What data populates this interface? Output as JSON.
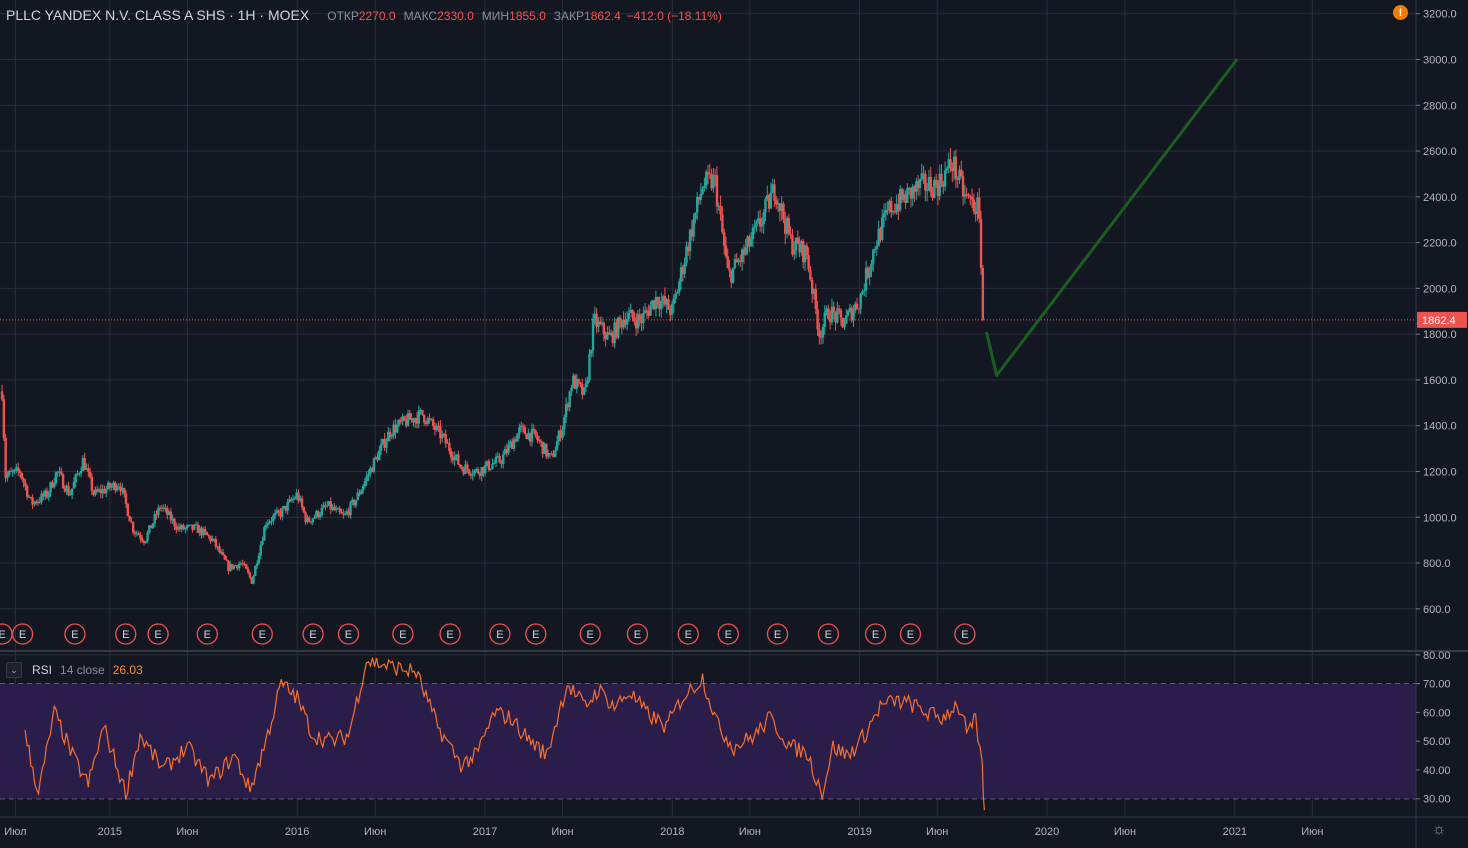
{
  "header": {
    "symbol": "PLLC YANDEX N.V. CLASS A SHS · 1Н · MOEX",
    "open_label": "ОТКР",
    "open_value": "2270.0",
    "high_label": "МАКС",
    "high_value": "2330.0",
    "low_label": "МИН",
    "low_value": "1855.0",
    "close_label": "ЗАКР",
    "close_value": "1862.4",
    "change": "−412.0 (−18.11%)"
  },
  "alert_icon": "!",
  "settings_icon": "☼",
  "rsi": {
    "collapse_icon": "⌄",
    "name": "RSI",
    "params": "14 close",
    "value": "26.03"
  },
  "colors": {
    "background": "#131722",
    "grid": "#2a2e39",
    "up": "#26a69a",
    "down": "#ef5350",
    "rsi_line": "#f7702a",
    "rsi_band": "#2b1d4a",
    "drawing": "#1b5e20",
    "price_tag": "#ef5350"
  },
  "chart_data": [
    {
      "type": "candlestick",
      "title": "PLLC YANDEX N.V. CLASS A SHS",
      "timeframe": "1Н",
      "exchange": "MOEX",
      "y_ticks": [
        600,
        800,
        1000,
        1200,
        1400,
        1600,
        1800,
        2000,
        2200,
        2400,
        2600,
        2800,
        3000,
        3200
      ],
      "y_tick_labels": [
        "600.0",
        "800.0",
        "1000.0",
        "1200.0",
        "1400.0",
        "1600.0",
        "1800.0",
        "2000.0",
        "2200.0",
        "2400.0",
        "2600.0",
        "2800.0",
        "3000.0",
        "3200.0"
      ],
      "ylim": [
        420,
        3260
      ],
      "x_axis": {
        "range": [
          "2014-06-01",
          "2021-12-20"
        ],
        "ticks": [
          {
            "date": "2014-07-01",
            "label": "Июл"
          },
          {
            "date": "2015-01-01",
            "label": "2015"
          },
          {
            "date": "2015-06-01",
            "label": "Июн"
          },
          {
            "date": "2016-01-01",
            "label": "2016"
          },
          {
            "date": "2016-06-01",
            "label": "Июн"
          },
          {
            "date": "2017-01-01",
            "label": "2017"
          },
          {
            "date": "2017-06-01",
            "label": "Июн"
          },
          {
            "date": "2018-01-01",
            "label": "2018"
          },
          {
            "date": "2018-06-01",
            "label": "Июн"
          },
          {
            "date": "2019-01-01",
            "label": "2019"
          },
          {
            "date": "2019-06-01",
            "label": "Июн"
          },
          {
            "date": "2020-01-01",
            "label": "2020"
          },
          {
            "date": "2020-06-01",
            "label": "Июн"
          },
          {
            "date": "2021-01-01",
            "label": "2021"
          },
          {
            "date": "2021-06-01",
            "label": "Июн"
          }
        ]
      },
      "grid": true,
      "last_price": 1862.4,
      "last_price_label": "1862.4",
      "price_path": [
        [
          "2014-06-05",
          1550
        ],
        [
          "2014-06-12",
          1180
        ],
        [
          "2014-07-10",
          1200
        ],
        [
          "2014-08-01",
          1060
        ],
        [
          "2014-09-01",
          1100
        ],
        [
          "2014-09-20",
          1200
        ],
        [
          "2014-10-15",
          1100
        ],
        [
          "2014-11-10",
          1250
        ],
        [
          "2014-12-01",
          1100
        ],
        [
          "2015-01-20",
          1150
        ],
        [
          "2015-02-15",
          950
        ],
        [
          "2015-03-10",
          900
        ],
        [
          "2015-04-10",
          1050
        ],
        [
          "2015-05-15",
          950
        ],
        [
          "2015-06-20",
          950
        ],
        [
          "2015-07-20",
          900
        ],
        [
          "2015-08-20",
          780
        ],
        [
          "2015-09-15",
          800
        ],
        [
          "2015-10-05",
          720
        ],
        [
          "2015-11-01",
          980
        ],
        [
          "2015-12-01",
          1020
        ],
        [
          "2016-01-01",
          1100
        ],
        [
          "2016-01-20",
          980
        ],
        [
          "2016-03-01",
          1050
        ],
        [
          "2016-04-01",
          1000
        ],
        [
          "2016-04-25",
          1080
        ],
        [
          "2016-06-01",
          1250
        ],
        [
          "2016-07-01",
          1380
        ],
        [
          "2016-08-01",
          1420
        ],
        [
          "2016-09-01",
          1450
        ],
        [
          "2016-10-10",
          1350
        ],
        [
          "2016-11-15",
          1220
        ],
        [
          "2016-12-15",
          1200
        ],
        [
          "2017-02-01",
          1250
        ],
        [
          "2017-03-10",
          1380
        ],
        [
          "2017-04-10",
          1350
        ],
        [
          "2017-05-10",
          1250
        ],
        [
          "2017-06-01",
          1400
        ],
        [
          "2017-06-20",
          1600
        ],
        [
          "2017-07-15",
          1530
        ],
        [
          "2017-08-01",
          1860
        ],
        [
          "2017-09-01",
          1780
        ],
        [
          "2017-10-01",
          1880
        ],
        [
          "2017-11-01",
          1860
        ],
        [
          "2017-12-01",
          1960
        ],
        [
          "2018-01-01",
          1900
        ],
        [
          "2018-02-01",
          2200
        ],
        [
          "2018-03-01",
          2450
        ],
        [
          "2018-03-25",
          2470
        ],
        [
          "2018-04-20",
          2050
        ],
        [
          "2018-05-20",
          2150
        ],
        [
          "2018-06-20",
          2280
        ],
        [
          "2018-07-20",
          2440
        ],
        [
          "2018-08-20",
          2200
        ],
        [
          "2018-09-20",
          2150
        ],
        [
          "2018-10-15",
          1800
        ],
        [
          "2018-11-01",
          1900
        ],
        [
          "2018-12-01",
          1850
        ],
        [
          "2019-01-01",
          1950
        ],
        [
          "2019-02-01",
          2200
        ],
        [
          "2019-03-01",
          2350
        ],
        [
          "2019-04-01",
          2400
        ],
        [
          "2019-05-01",
          2450
        ],
        [
          "2019-06-01",
          2450
        ],
        [
          "2019-07-01",
          2550
        ],
        [
          "2019-07-25",
          2400
        ],
        [
          "2019-08-20",
          2350
        ],
        [
          "2019-09-01",
          1862.4
        ]
      ],
      "earnings_marker_label": "E",
      "earnings_dates": [
        "2014-06-05",
        "2014-07-15",
        "2014-10-25",
        "2015-02-01",
        "2015-04-05",
        "2015-07-10",
        "2015-10-25",
        "2016-02-01",
        "2016-04-10",
        "2016-07-25",
        "2016-10-25",
        "2017-01-30",
        "2017-04-10",
        "2017-07-25",
        "2017-10-25",
        "2018-02-01",
        "2018-04-20",
        "2018-07-25",
        "2018-11-01",
        "2019-02-01",
        "2019-04-10",
        "2019-07-25"
      ]
    },
    {
      "type": "line",
      "title": "RSI",
      "y_ticks": [
        30,
        40,
        50,
        60,
        70,
        80
      ],
      "y_tick_labels": [
        "30.00",
        "40.00",
        "50.00",
        "60.00",
        "70.00",
        "80.00"
      ],
      "ylim": [
        24,
        81
      ],
      "band": [
        30,
        70
      ],
      "last_value": 26.03,
      "rsi_path": [
        [
          "2014-07-20",
          52
        ],
        [
          "2014-08-15",
          32
        ],
        [
          "2014-09-15",
          60
        ],
        [
          "2014-10-20",
          45
        ],
        [
          "2014-11-20",
          35
        ],
        [
          "2014-12-20",
          55
        ],
        [
          "2015-02-01",
          32
        ],
        [
          "2015-03-01",
          52
        ],
        [
          "2015-04-15",
          40
        ],
        [
          "2015-06-01",
          48
        ],
        [
          "2015-07-15",
          36
        ],
        [
          "2015-09-01",
          45
        ],
        [
          "2015-10-01",
          33
        ],
        [
          "2015-11-01",
          50
        ],
        [
          "2015-12-01",
          70
        ],
        [
          "2016-01-01",
          65
        ],
        [
          "2016-02-01",
          52
        ],
        [
          "2016-03-10",
          50
        ],
        [
          "2016-04-10",
          52
        ],
        [
          "2016-05-15",
          78
        ],
        [
          "2016-07-01",
          76
        ],
        [
          "2016-08-20",
          74
        ],
        [
          "2016-10-01",
          55
        ],
        [
          "2016-11-15",
          42
        ],
        [
          "2016-12-15",
          45
        ],
        [
          "2017-01-20",
          60
        ],
        [
          "2017-02-20",
          58
        ],
        [
          "2017-03-20",
          52
        ],
        [
          "2017-05-01",
          45
        ],
        [
          "2017-06-10",
          70
        ],
        [
          "2017-07-15",
          62
        ],
        [
          "2017-08-10",
          68
        ],
        [
          "2017-09-10",
          62
        ],
        [
          "2017-10-10",
          67
        ],
        [
          "2017-11-10",
          60
        ],
        [
          "2017-12-20",
          55
        ],
        [
          "2018-01-20",
          65
        ],
        [
          "2018-03-01",
          72
        ],
        [
          "2018-04-01",
          55
        ],
        [
          "2018-05-01",
          48
        ],
        [
          "2018-06-10",
          52
        ],
        [
          "2018-07-10",
          58
        ],
        [
          "2018-08-20",
          48
        ],
        [
          "2018-09-20",
          46
        ],
        [
          "2018-10-20",
          32
        ],
        [
          "2018-11-10",
          48
        ],
        [
          "2018-12-10",
          45
        ],
        [
          "2019-01-10",
          52
        ],
        [
          "2019-02-10",
          62
        ],
        [
          "2019-03-10",
          64
        ],
        [
          "2019-04-10",
          63
        ],
        [
          "2019-05-10",
          60
        ],
        [
          "2019-06-10",
          58
        ],
        [
          "2019-07-10",
          63
        ],
        [
          "2019-08-01",
          52
        ],
        [
          "2019-08-15",
          58
        ],
        [
          "2019-08-28",
          40
        ],
        [
          "2019-09-01",
          26.03
        ]
      ]
    }
  ],
  "drawing": {
    "type": "trend_line",
    "points": [
      [
        "2019-09-05",
        1810
      ],
      [
        "2019-09-25",
        1620
      ],
      [
        "2021-01-05",
        3000
      ]
    ]
  }
}
